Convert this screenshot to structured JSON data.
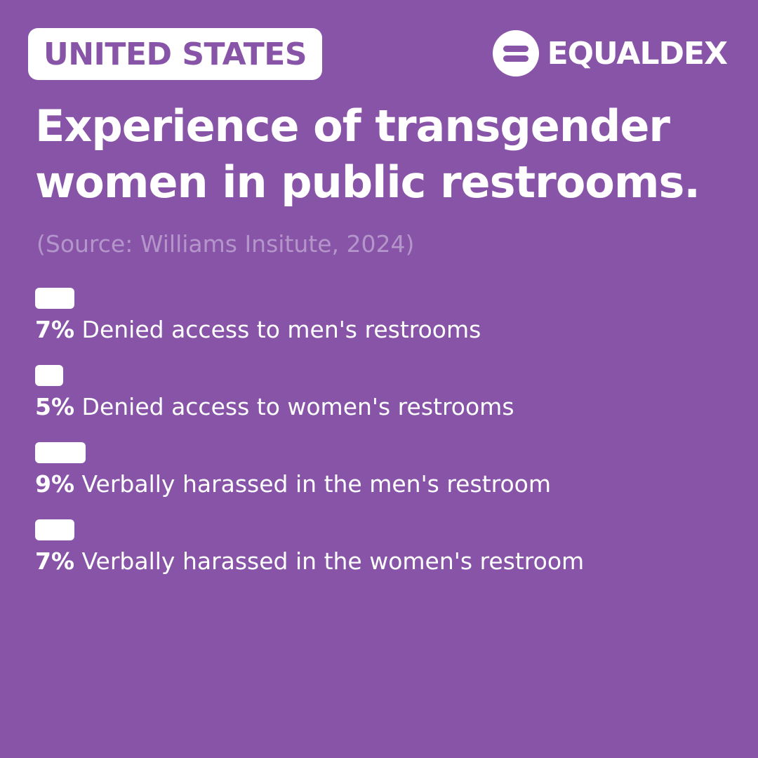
{
  "header": {
    "country": "UNITED STATES",
    "brand": "EQUALDEX",
    "brand_icon": "equaldex-logo-icon"
  },
  "colors": {
    "background": "#8854a8",
    "foreground": "#ffffff",
    "source_text": "#b596cb"
  },
  "chart_data": {
    "type": "bar",
    "orientation": "horizontal",
    "title": "Experience of transgender women in public restrooms.",
    "subtitle": "(Source: Williams Insitute, 2024)",
    "unit": "%",
    "categories": [
      "Denied access to men's restrooms",
      "Denied access to women's restrooms",
      "Verbally harassed in the men's restroom",
      "Verbally harassed in the women's restroom"
    ],
    "values": [
      7,
      5,
      9,
      7
    ],
    "value_labels": [
      "7%",
      "5%",
      "9%",
      "7%"
    ],
    "grid": false,
    "legend": "none"
  }
}
